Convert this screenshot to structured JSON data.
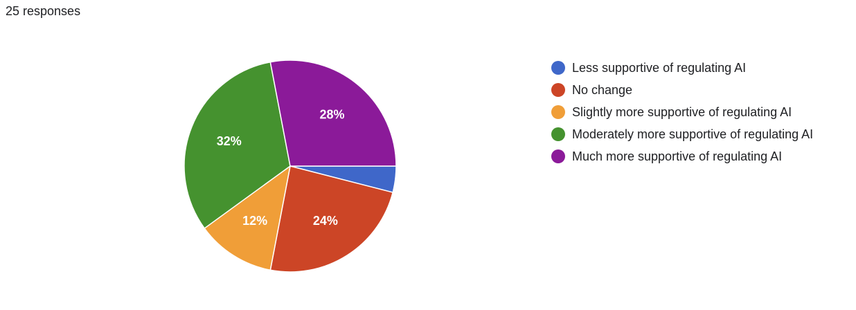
{
  "chart_data": {
    "type": "pie",
    "subtitle": "25 responses",
    "categories": [
      "Less supportive of regulating AI",
      "No change",
      "Slightly more supportive of regulating AI",
      "Moderately more supportive of regulating AI",
      "Much more supportive of regulating AI"
    ],
    "values": [
      4,
      24,
      12,
      32,
      28
    ],
    "value_labels": [
      null,
      "24%",
      "12%",
      "32%",
      "28%"
    ],
    "colors": [
      "#3f67c9",
      "#cc4526",
      "#f09e38",
      "#45922f",
      "#8b1a99"
    ],
    "legend": "right"
  }
}
